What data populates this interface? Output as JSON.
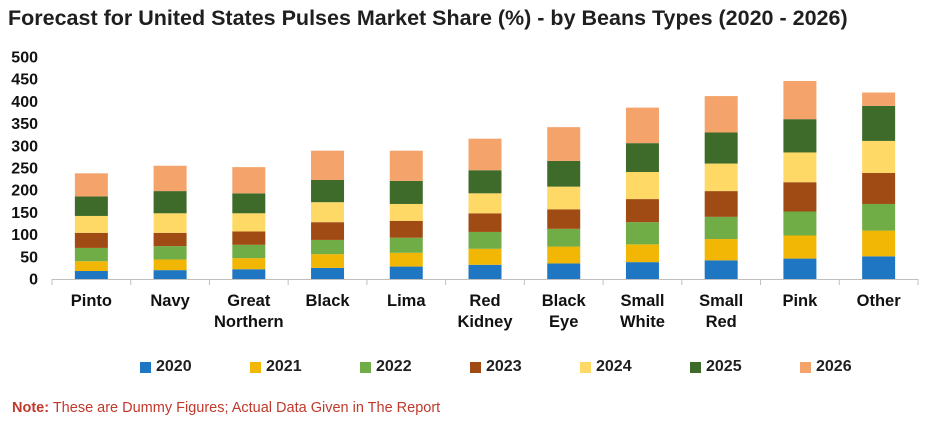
{
  "title": "Forecast for United States Pulses Market Share (%) - by Beans Types (2020 - 2026)",
  "note": {
    "prefix": "Note:",
    "text": " These are Dummy Figures; Actual Data Given in The Report"
  },
  "chart_data": {
    "type": "bar",
    "stacked": true,
    "categories": [
      [
        "Pinto"
      ],
      [
        "Navy"
      ],
      [
        "Great",
        "Northern"
      ],
      [
        "Black"
      ],
      [
        "Lima"
      ],
      [
        "Red",
        "Kidney"
      ],
      [
        "Black",
        "Eye"
      ],
      [
        "Small",
        "White"
      ],
      [
        "Small",
        "Red"
      ],
      [
        "Pink"
      ],
      [
        "Other"
      ]
    ],
    "ylim": [
      0,
      500
    ],
    "yticks": [
      "0",
      "50",
      "100",
      "150",
      "200",
      "250",
      "300",
      "350",
      "400",
      "450",
      "500"
    ],
    "grid": false,
    "legend_position": "bottom",
    "series": [
      {
        "name": "2020",
        "color": "#1f77c4",
        "values": [
          18,
          20,
          22,
          25,
          28,
          32,
          35,
          38,
          42,
          46,
          51
        ]
      },
      {
        "name": "2021",
        "color": "#f2b705",
        "values": [
          22,
          24,
          25,
          31,
          31,
          36,
          38,
          40,
          48,
          52,
          58
        ]
      },
      {
        "name": "2022",
        "color": "#70ad47",
        "values": [
          30,
          30,
          30,
          32,
          34,
          38,
          40,
          50,
          50,
          54,
          60
        ]
      },
      {
        "name": "2023",
        "color": "#a04a14",
        "values": [
          34,
          30,
          30,
          40,
          38,
          42,
          44,
          52,
          58,
          66,
          70
        ]
      },
      {
        "name": "2024",
        "color": "#ffd966",
        "values": [
          38,
          44,
          41,
          45,
          38,
          45,
          51,
          61,
          62,
          67,
          72
        ]
      },
      {
        "name": "2025",
        "color": "#3f6b2a",
        "values": [
          44,
          50,
          45,
          50,
          52,
          52,
          58,
          65,
          70,
          75,
          79
        ]
      },
      {
        "name": "2026",
        "color": "#f4a36b",
        "values": [
          52,
          57,
          59,
          66,
          68,
          71,
          76,
          80,
          82,
          86,
          30
        ]
      }
    ]
  }
}
